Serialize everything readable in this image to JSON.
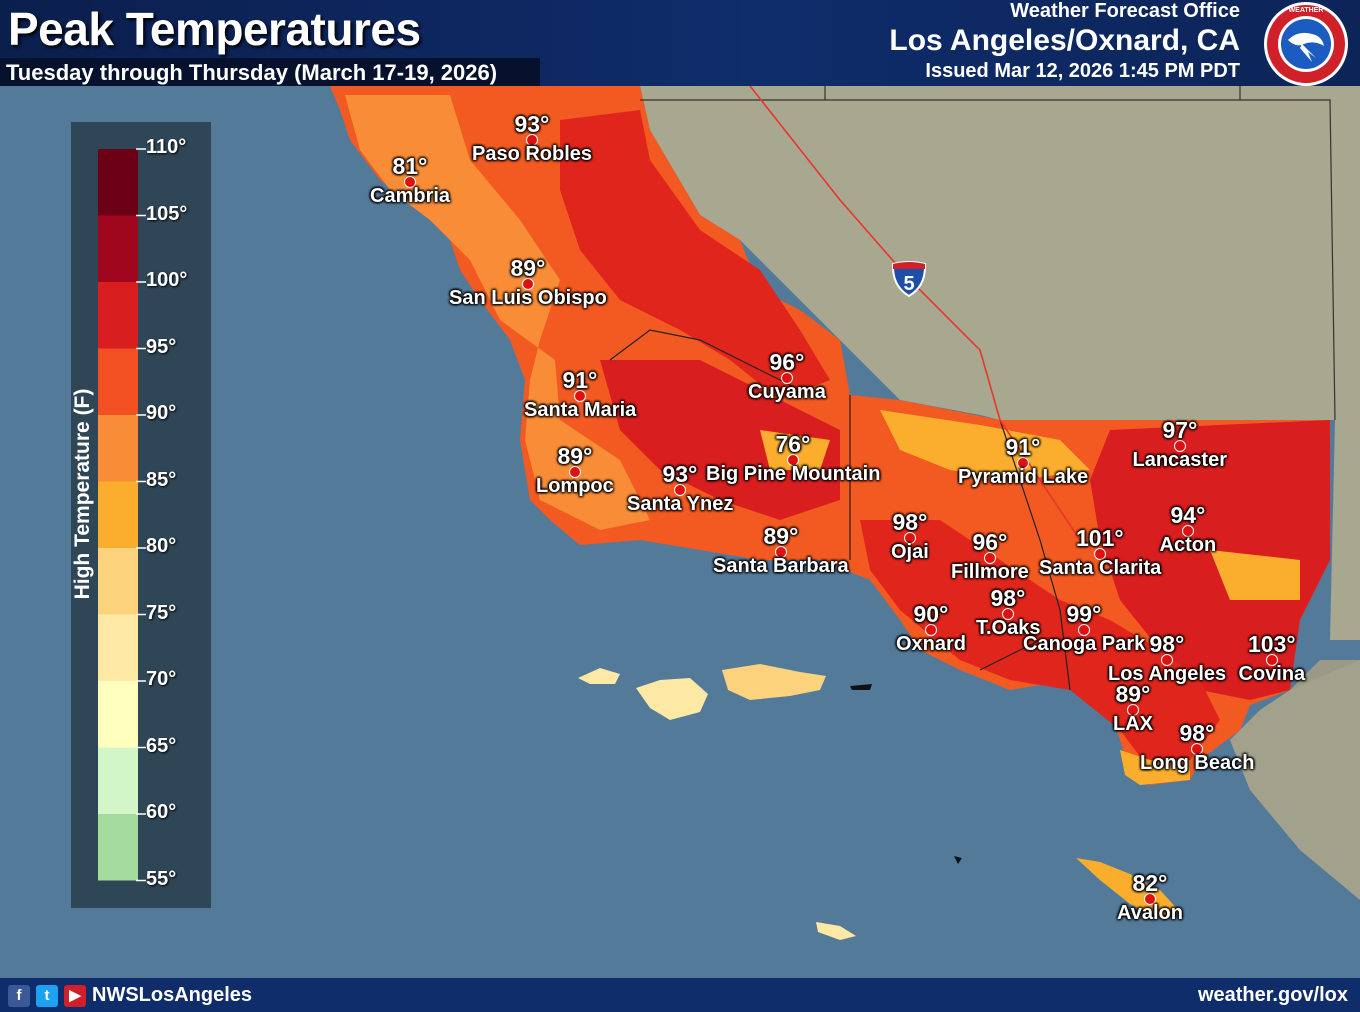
{
  "header": {
    "title": "Peak Temperatures",
    "subtitle": "Tuesday through Thursday (March 17-19, 2026)",
    "office_line": "Weather Forecast Office",
    "office_city": "Los Angeles/Oxnard, CA",
    "issued": "Issued Mar 12, 2026 1:45 PM PDT",
    "logo_text": "NATIONAL WEATHER SERVICE"
  },
  "legend": {
    "axis_title": "High Temperature (F)",
    "ticks": [
      "110°",
      "105°",
      "100°",
      "95°",
      "90°",
      "85°",
      "80°",
      "75°",
      "70°",
      "65°",
      "60°",
      "55°"
    ],
    "colors": [
      "#6b0016",
      "#a0061e",
      "#d81e1e",
      "#f24f22",
      "#f98c36",
      "#fbae2e",
      "#fdd27c",
      "#fee9a4",
      "#ffffbe",
      "#d3f6c8",
      "#a6dba0"
    ]
  },
  "highway": {
    "label": "5",
    "icon": "interstate-shield-icon"
  },
  "locations": [
    {
      "city": "Paso Robles",
      "temp": "93°"
    },
    {
      "city": "Cambria",
      "temp": "81°"
    },
    {
      "city": "San Luis Obispo",
      "temp": "89°"
    },
    {
      "city": "Santa Maria",
      "temp": "91°"
    },
    {
      "city": "Cuyama",
      "temp": "96°"
    },
    {
      "city": "Lompoc",
      "temp": "89°"
    },
    {
      "city": "Big Pine Mountain",
      "temp": "76°"
    },
    {
      "city": "Santa Ynez",
      "temp": "93°"
    },
    {
      "city": "Santa Barbara",
      "temp": "89°"
    },
    {
      "city": "Pyramid Lake",
      "temp": "91°"
    },
    {
      "city": "Lancaster",
      "temp": "97°"
    },
    {
      "city": "Ojai",
      "temp": "98°"
    },
    {
      "city": "Fillmore",
      "temp": "96°"
    },
    {
      "city": "Santa Clarita",
      "temp": "101°"
    },
    {
      "city": "Acton",
      "temp": "94°"
    },
    {
      "city": "Oxnard",
      "temp": "90°"
    },
    {
      "city": "T.Oaks",
      "temp": "98°"
    },
    {
      "city": "Canoga Park",
      "temp": "99°"
    },
    {
      "city": "Los Angeles",
      "temp": "98°"
    },
    {
      "city": "Covina",
      "temp": "103°"
    },
    {
      "city": "LAX",
      "temp": "89°"
    },
    {
      "city": "Long Beach",
      "temp": "98°"
    },
    {
      "city": "Avalon",
      "temp": "82°"
    }
  ],
  "footer": {
    "handle": "NWSLosAngeles",
    "site": "weather.gov/lox",
    "icons": [
      "facebook-icon",
      "twitter-icon",
      "youtube-icon"
    ]
  }
}
